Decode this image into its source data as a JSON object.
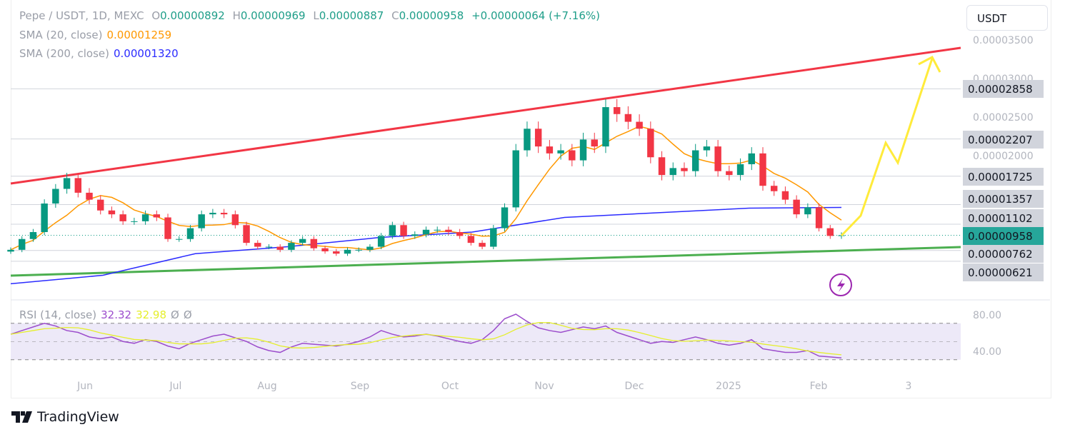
{
  "header": {
    "symbol": "Pepe / USDT, 1D, MEXC",
    "o_label": "O",
    "open": "0.00000892",
    "h_label": "H",
    "high": "0.00000969",
    "l_label": "L",
    "low": "0.00000887",
    "c_label": "C",
    "close": "0.00000958",
    "change": "+0.00000064 (+7.16%)"
  },
  "sma20": {
    "label": "SMA (20, close)",
    "value": "0.00001259",
    "color": "#ff9800"
  },
  "sma200": {
    "label": "SMA (200, close)",
    "value": "0.00001320",
    "color": "#2b2bff"
  },
  "currency": "USDT",
  "rsi": {
    "label": "RSI (14, close)",
    "value": "32.32",
    "ma_value": "32.98",
    "na1": "Ø",
    "na2": "Ø",
    "ticks": [
      "80.00",
      "40.00"
    ]
  },
  "brand": "TradingView",
  "chart_data": {
    "type": "candlestick",
    "ylim": [
      3e-06,
      3.65e-05
    ],
    "y_ticks": [
      "0.00003500",
      "0.00003000",
      "0.00002500",
      "0.00002000"
    ],
    "price_labels": [
      {
        "text": "0.00002858",
        "value": 2.858e-05
      },
      {
        "text": "0.00002207",
        "value": 2.207e-05
      },
      {
        "text": "0.00001725",
        "value": 1.725e-05
      },
      {
        "text": "0.00001357",
        "value": 1.357e-05
      },
      {
        "text": "0.00001102",
        "value": 1.102e-05
      },
      {
        "text": "0.00000958",
        "value": 9.58e-06,
        "current": true
      },
      {
        "text": "0.00000762",
        "value": 7.62e-06
      },
      {
        "text": "0.00000621",
        "value": 6.21e-06
      }
    ],
    "x_ticks": [
      "Jun",
      "Jul",
      "Aug",
      "Sep",
      "Oct",
      "Nov",
      "Dec",
      "2025",
      "Feb",
      "3"
    ],
    "closes": [
      7.7,
      9.1,
      10.0,
      13.7,
      15.6,
      17.0,
      15.1,
      14.2,
      12.8,
      12.3,
      11.4,
      11.4,
      12.3,
      11.9,
      9.1,
      9.1,
      10.5,
      12.3,
      12.5,
      12.3,
      10.9,
      8.6,
      8.1,
      8.1,
      7.7,
      8.6,
      9.1,
      7.9,
      7.5,
      7.2,
      7.7,
      7.7,
      8.1,
      9.5,
      10.9,
      9.5,
      9.7,
      10.3,
      10.3,
      10.0,
      9.5,
      8.6,
      8.1,
      10.5,
      13.2,
      20.6,
      23.4,
      21.1,
      20.2,
      20.6,
      19.3,
      22.0,
      21.1,
      26.2,
      25.3,
      24.3,
      23.4,
      19.7,
      17.4,
      18.3,
      17.9,
      20.6,
      21.1,
      17.9,
      17.4,
      18.8,
      20.2,
      16.0,
      15.3,
      14.2,
      12.3,
      13.2,
      10.5,
      9.5,
      9.58
    ],
    "close_units": "1e-6 USDT",
    "sma200": [
      3.3,
      4.4,
      7.2,
      8.1,
      9.3,
      10.0,
      11.9,
      12.5,
      13.1,
      13.2
    ],
    "rsi_series": [
      58,
      62,
      66,
      70,
      67,
      62,
      60,
      55,
      53,
      55,
      50,
      48,
      52,
      50,
      45,
      42,
      48,
      52,
      56,
      58,
      54,
      50,
      44,
      40,
      38,
      44,
      48,
      47,
      46,
      45,
      47,
      50,
      55,
      62,
      58,
      55,
      56,
      58,
      56,
      53,
      50,
      48,
      52,
      62,
      75,
      80,
      72,
      65,
      62,
      60,
      63,
      66,
      64,
      67,
      60,
      56,
      52,
      48,
      50,
      49,
      52,
      55,
      52,
      48,
      46,
      48,
      52,
      42,
      40,
      38,
      38,
      40,
      34,
      33,
      32
    ],
    "rsi_ylim": [
      20,
      95
    ],
    "colors": {
      "up": "#089981",
      "down": "#f23645",
      "resistance": "#f23645",
      "support": "#4caf50",
      "projection": "#ffeb3b",
      "rsi": "#9c4dcc",
      "rsi_ma": "#e5ef2b"
    }
  }
}
